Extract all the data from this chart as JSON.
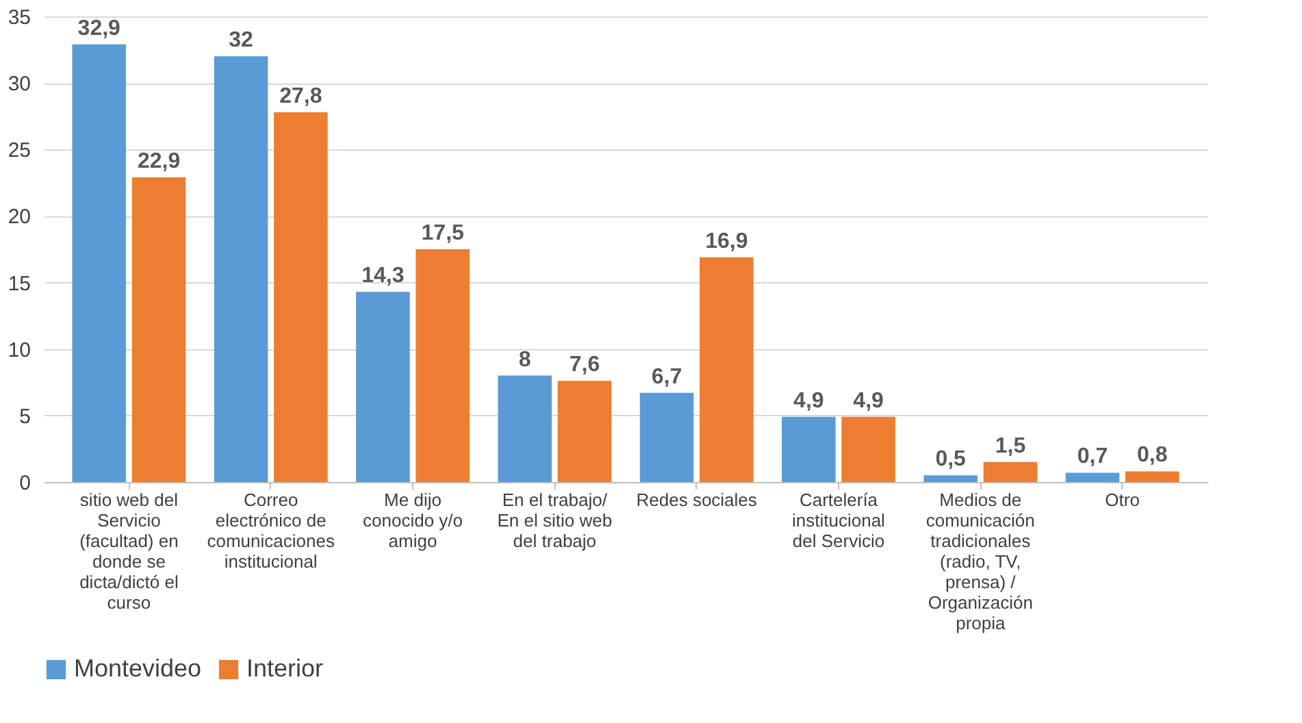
{
  "chart_data": {
    "type": "bar",
    "categories": [
      "sitio web del Servicio (facultad) en donde se dicta/dictó el curso",
      "Correo electrónico de comunicaciones institucional",
      "Me dijo conocido y/o amigo",
      "En el trabajo/ En el sitio web del trabajo",
      "Redes sociales",
      "Cartelería institucional del Servicio",
      "Medios de comunicación tradicionales (radio, TV, prensa) / Organización propia",
      "Otro"
    ],
    "series": [
      {
        "name": "Montevideo",
        "color": "#5b9bd5",
        "values": [
          32.9,
          32,
          14.3,
          8,
          6.7,
          4.9,
          0.5,
          0.7
        ],
        "value_labels": [
          "32,9",
          "32",
          "14,3",
          "8",
          "6,7",
          "4,9",
          "0,5",
          "0,7"
        ]
      },
      {
        "name": "Interior",
        "color": "#ed7d31",
        "values": [
          22.9,
          27.8,
          17.5,
          7.6,
          16.9,
          4.9,
          1.5,
          0.8
        ],
        "value_labels": [
          "22,9",
          "27,8",
          "17,5",
          "7,6",
          "16,9",
          "4,9",
          "1,5",
          "0,8"
        ]
      }
    ],
    "ylim": [
      0,
      35
    ],
    "yticks": [
      0,
      5,
      10,
      15,
      20,
      25,
      30,
      35
    ],
    "grid": "y",
    "legend": "bottom"
  }
}
